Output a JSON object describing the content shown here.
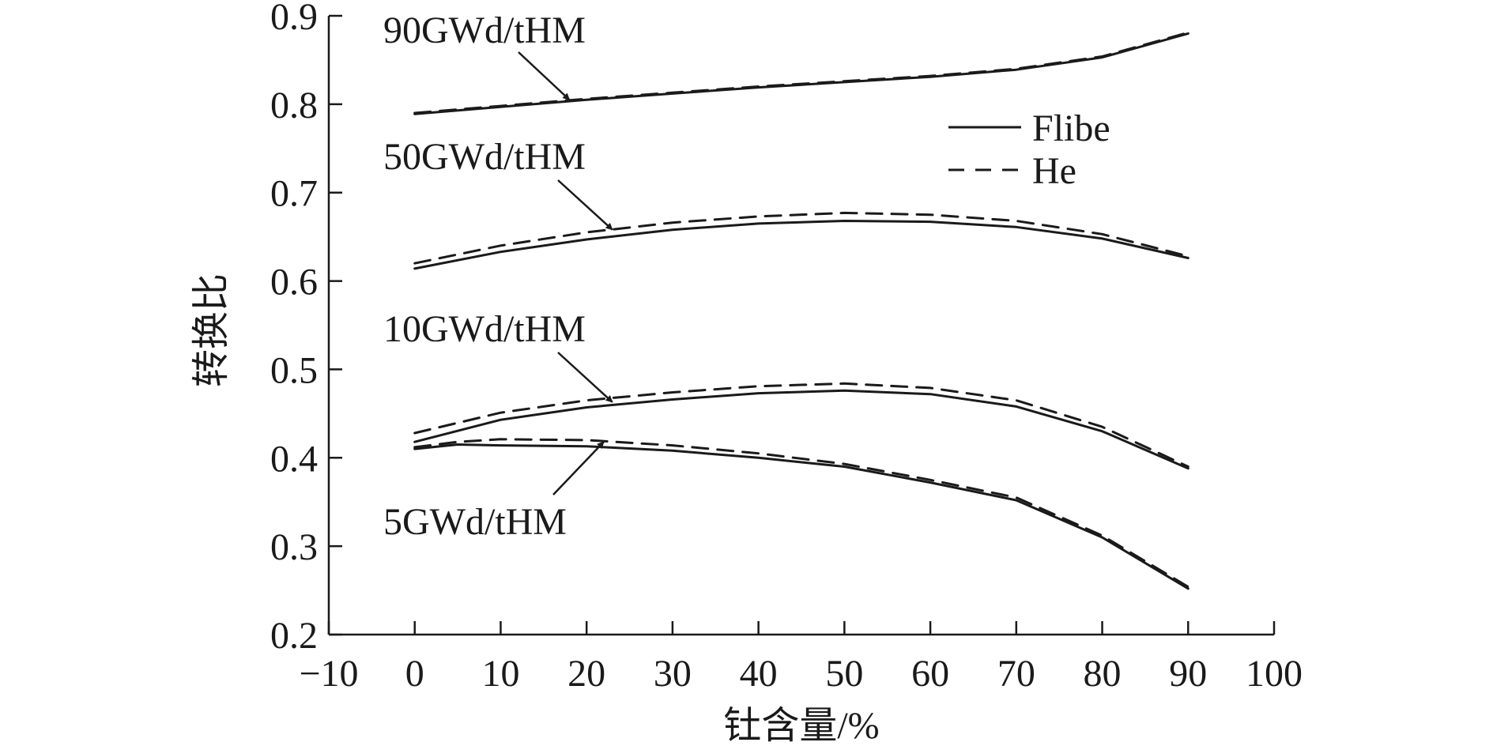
{
  "chart_data": {
    "type": "line",
    "title": "",
    "xlabel": "钍含量/%",
    "ylabel": "转换比",
    "xlim": [
      -10,
      100
    ],
    "ylim": [
      0.2,
      0.9
    ],
    "x_ticks": [
      -10,
      0,
      10,
      20,
      30,
      40,
      50,
      60,
      70,
      80,
      90,
      100
    ],
    "x_tick_labels": [
      "−10",
      "0",
      "10",
      "20",
      "30",
      "40",
      "50",
      "60",
      "70",
      "80",
      "90",
      "100"
    ],
    "y_ticks": [
      0.2,
      0.3,
      0.4,
      0.5,
      0.6,
      0.7,
      0.8,
      0.9
    ],
    "y_tick_labels": [
      "0.2",
      "0.3",
      "0.4",
      "0.5",
      "0.6",
      "0.7",
      "0.8",
      "0.9"
    ],
    "grid": false,
    "legend": {
      "position": "top-right",
      "entries": [
        {
          "label": "Flibe",
          "style": "solid"
        },
        {
          "label": "He",
          "style": "dashed"
        }
      ]
    },
    "groups": [
      {
        "label": "90GWd/tHM",
        "series": [
          {
            "coolant": "Flibe",
            "style": "solid",
            "x": [
              0,
              10,
              20,
              30,
              40,
              50,
              60,
              70,
              80,
              90
            ],
            "y": [
              0.789,
              0.797,
              0.805,
              0.812,
              0.819,
              0.825,
              0.831,
              0.839,
              0.853,
              0.88
            ]
          },
          {
            "coolant": "He",
            "style": "dashed",
            "x": [
              0,
              10,
              20,
              30,
              40,
              50,
              60,
              70,
              80,
              90
            ],
            "y": [
              0.79,
              0.798,
              0.806,
              0.813,
              0.82,
              0.826,
              0.832,
              0.84,
              0.854,
              0.881
            ]
          }
        ],
        "arrow_to": [
          18,
          0.805
        ]
      },
      {
        "label": "50GWd/tHM",
        "series": [
          {
            "coolant": "Flibe",
            "style": "solid",
            "x": [
              0,
              10,
              20,
              30,
              40,
              50,
              60,
              70,
              80,
              90
            ],
            "y": [
              0.614,
              0.633,
              0.647,
              0.658,
              0.665,
              0.668,
              0.667,
              0.661,
              0.648,
              0.626
            ]
          },
          {
            "coolant": "He",
            "style": "dashed",
            "x": [
              0,
              10,
              20,
              30,
              40,
              50,
              60,
              70,
              80,
              90
            ],
            "y": [
              0.62,
              0.64,
              0.655,
              0.666,
              0.673,
              0.677,
              0.675,
              0.668,
              0.653,
              0.628
            ]
          }
        ],
        "arrow_to": [
          23,
          0.658
        ]
      },
      {
        "label": "10GWd/tHM",
        "series": [
          {
            "coolant": "Flibe",
            "style": "solid",
            "x": [
              0,
              10,
              20,
              30,
              40,
              50,
              60,
              70,
              80,
              90
            ],
            "y": [
              0.418,
              0.443,
              0.457,
              0.466,
              0.473,
              0.476,
              0.472,
              0.458,
              0.43,
              0.388
            ]
          },
          {
            "coolant": "He",
            "style": "dashed",
            "x": [
              0,
              10,
              20,
              30,
              40,
              50,
              60,
              70,
              80,
              90
            ],
            "y": [
              0.428,
              0.451,
              0.465,
              0.474,
              0.481,
              0.484,
              0.479,
              0.465,
              0.435,
              0.39
            ]
          }
        ],
        "arrow_to": [
          23,
          0.463
        ]
      },
      {
        "label": "5GWd/tHM",
        "series": [
          {
            "coolant": "Flibe",
            "style": "solid",
            "x": [
              0,
              5,
              10,
              20,
              30,
              40,
              50,
              60,
              70,
              80,
              90
            ],
            "y": [
              0.41,
              0.415,
              0.414,
              0.413,
              0.408,
              0.4,
              0.39,
              0.372,
              0.352,
              0.31,
              0.252
            ]
          },
          {
            "coolant": "He",
            "style": "dashed",
            "x": [
              0,
              5,
              10,
              20,
              30,
              40,
              50,
              60,
              70,
              80,
              90
            ],
            "y": [
              0.412,
              0.418,
              0.421,
              0.42,
              0.414,
              0.405,
              0.393,
              0.375,
              0.355,
              0.312,
              0.254
            ]
          }
        ],
        "arrow_to": [
          22,
          0.418
        ]
      }
    ]
  }
}
